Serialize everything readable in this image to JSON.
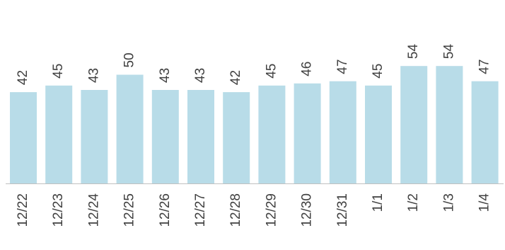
{
  "chart_data": {
    "type": "bar",
    "title": "",
    "xlabel": "",
    "ylabel": "",
    "categories": [
      "12/22",
      "12/23",
      "12/24",
      "12/25",
      "12/26",
      "12/27",
      "12/28",
      "12/29",
      "12/30",
      "12/31",
      "1/1",
      "1/2",
      "1/3",
      "1/4"
    ],
    "values": [
      42,
      45,
      43,
      50,
      43,
      43,
      42,
      45,
      46,
      47,
      45,
      54,
      54,
      47
    ],
    "ylim": [
      0,
      54
    ],
    "grid": false,
    "legend": "none",
    "data_labels": true,
    "label_orientation": "vertical",
    "colors": {
      "bar": "#b8dce8",
      "axis": "#c0c0c0",
      "text": "#404040"
    }
  }
}
